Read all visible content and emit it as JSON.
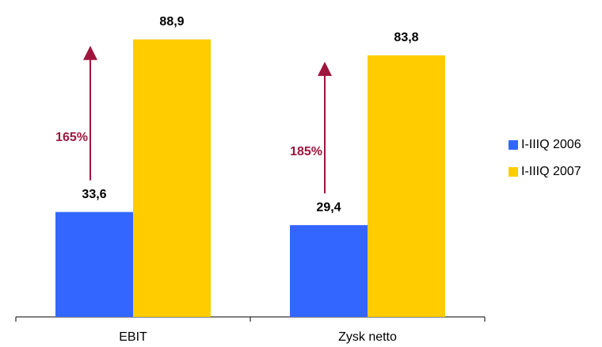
{
  "chart_data": {
    "type": "bar",
    "categories": [
      "EBIT",
      "Zysk netto"
    ],
    "series": [
      {
        "name": "I-IIIQ 2006",
        "color": "#3366ff",
        "values": [
          33.6,
          29.4
        ],
        "value_labels": [
          "33,6",
          "29,4"
        ]
      },
      {
        "name": "I-IIIQ 2007",
        "color": "#ffcc00",
        "values": [
          88.9,
          83.8
        ],
        "value_labels": [
          "88,9",
          "83,8"
        ]
      }
    ],
    "annotations": [
      "165%",
      "185%"
    ],
    "annotation_color": "#a0153e",
    "legend": "right"
  }
}
